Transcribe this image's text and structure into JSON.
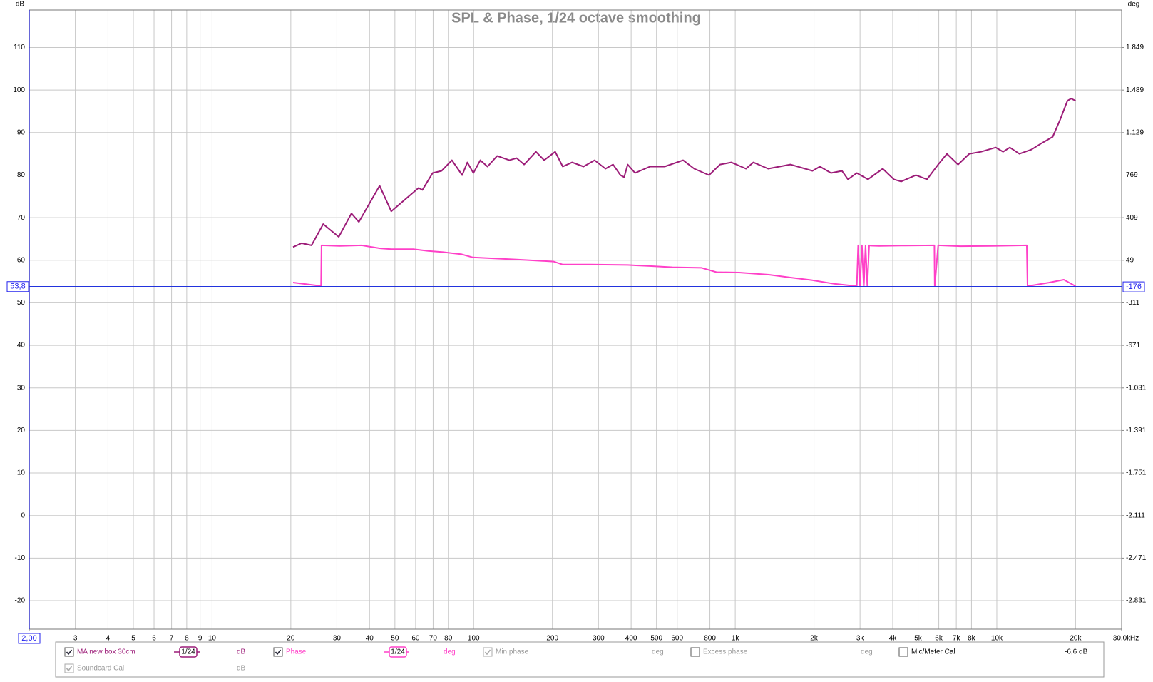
{
  "chart_data": {
    "type": "line",
    "title": "SPL & Phase, 1/24 octave smoothing",
    "x_label": "Hz",
    "y_label": "dB",
    "y2_label": "deg",
    "log_x": true,
    "grid": true,
    "xlim": [
      2,
      30000
    ],
    "xticks": [
      {
        "value": 2,
        "label": "2,00"
      },
      3,
      4,
      5,
      6,
      7,
      8,
      9,
      10,
      20,
      30,
      40,
      50,
      60,
      70,
      80,
      100,
      200,
      300,
      400,
      500,
      600,
      800,
      {
        "value": 1000,
        "label": "1k"
      },
      {
        "value": 2000,
        "label": "2k"
      },
      {
        "value": 3000,
        "label": "3k"
      },
      {
        "value": 4000,
        "label": "4k"
      },
      {
        "value": 5000,
        "label": "5k"
      },
      {
        "value": 6000,
        "label": "6k"
      },
      {
        "value": 7000,
        "label": "7k"
      },
      {
        "value": 8000,
        "label": "8k"
      },
      {
        "value": 10000,
        "label": "10k"
      },
      {
        "value": 20000,
        "label": "20k"
      },
      {
        "value": 30000,
        "label": "30,0k"
      }
    ],
    "ylim": [
      -26.7,
      118.8
    ],
    "yticks": [
      -20,
      -10,
      0,
      10,
      20,
      30,
      40,
      50,
      60,
      70,
      80,
      90,
      100,
      110
    ],
    "y2lim": [
      -3072,
      2166
    ],
    "y2ticks": [
      {
        "value": -2831,
        "label": "-2.831"
      },
      {
        "value": -2471,
        "label": "-2.471"
      },
      {
        "value": -2111,
        "label": "-2.111"
      },
      {
        "value": -1751,
        "label": "-1.751"
      },
      {
        "value": -1391,
        "label": "-1.391"
      },
      {
        "value": -1031,
        "label": "-1.031"
      },
      -671,
      -311,
      49,
      409,
      769,
      {
        "value": 1129,
        "label": "1.129"
      },
      {
        "value": 1489,
        "label": "1.489"
      },
      {
        "value": 1849,
        "label": "1.849"
      }
    ],
    "cursor": {
      "y": {
        "value": 53.8,
        "label": "53,8"
      },
      "y2": -176
    },
    "series": [
      {
        "name": "MA new box 30cm",
        "color": "#9c1c78",
        "checked": true,
        "smoothing": "1/24",
        "unit": "dB",
        "x": [
          20.4,
          22,
          24,
          26.6,
          30.5,
          34.1,
          36.4,
          43.7,
          48.4,
          51.7,
          61.6,
          63.7,
          69.7,
          75.4,
          82.6,
          90.4,
          94.6,
          99.8,
          106,
          113,
          123,
          137,
          146,
          156,
          173,
          186,
          205,
          219,
          238,
          263,
          290,
          319,
          341,
          364,
          376,
          388,
          414,
          472,
          537,
          632,
          697,
          794,
          875,
          966,
          1099,
          1173,
          1336,
          1625,
          1973,
          2108,
          2323,
          2559,
          2698,
          2916,
          3215,
          3664,
          4037,
          4308,
          4906,
          5409,
          5968,
          6446,
          7110,
          7843,
          8700,
          9905,
          10570,
          11210,
          12200,
          13540,
          14830,
          16350,
          17450,
          18620,
          19240,
          20000
        ],
        "values": [
          63.1,
          64,
          63.5,
          68.5,
          65.5,
          71,
          69,
          77.5,
          71.5,
          73,
          77,
          76.5,
          80.5,
          81,
          83.5,
          80,
          83,
          80.5,
          83.5,
          82,
          84.5,
          83.5,
          84,
          82.5,
          85.5,
          83.5,
          85.5,
          82,
          83,
          82,
          83.5,
          81.5,
          82.5,
          80,
          79.5,
          82.5,
          80.5,
          82,
          82,
          83.5,
          81.5,
          80,
          82.5,
          83,
          81.5,
          83,
          81.5,
          82.5,
          81,
          82,
          80.5,
          81,
          79,
          80.5,
          79,
          81.5,
          79,
          78.5,
          80,
          79,
          82.5,
          85,
          82.5,
          85,
          85.5,
          86.5,
          85.5,
          86.5,
          85,
          86,
          87.5,
          89,
          93,
          97.5,
          98,
          97.5
        ]
      },
      {
        "name": "Phase",
        "color": "#ff40c8",
        "axis": "y2",
        "checked": true,
        "smoothing": "1/24",
        "unit": "deg",
        "x": [
          20.4,
          25.3,
          26.1,
          26.2,
          30.7,
          37.3,
          39.8,
          43.9,
          48.4,
          58.8,
          67,
          76.3,
          90,
          99,
          146,
          202,
          219,
          279,
          388,
          472,
          576,
          744,
          848,
          1035,
          1345,
          1625,
          1973,
          2390,
          2916,
          2950,
          3000,
          3050,
          3100,
          3150,
          3200,
          3250,
          3300,
          3546,
          4308,
          5770,
          5790,
          5968,
          7250,
          9400,
          13020,
          13100,
          15820,
          18030,
          20000
        ],
        "values": [
          -139,
          -165,
          -166,
          175,
          170,
          175,
          165,
          150,
          143,
          143,
          128,
          118,
          100,
          74,
          56,
          38,
          13,
          13,
          9,
          0,
          -10,
          -15,
          -52,
          -55,
          -73,
          -97,
          -120,
          -150,
          -170,
          175,
          -175,
          175,
          -175,
          175,
          -175,
          175,
          172,
          170,
          173,
          175,
          -175,
          175,
          168,
          170,
          175,
          -170,
          -140,
          -115,
          -170
        ]
      }
    ]
  },
  "panel": {
    "items": [
      {
        "label": "Min phase",
        "checked": true,
        "enabled": false,
        "unit": "deg"
      },
      {
        "label": "Excess phase",
        "checked": false,
        "enabled": true,
        "unit": "deg"
      },
      {
        "label": "Mic/Meter Cal",
        "checked": false,
        "enabled": true,
        "unit": "-6,6 dB"
      },
      {
        "label": "Soundcard Cal",
        "checked": true,
        "enabled": false,
        "unit": "dB"
      }
    ]
  }
}
